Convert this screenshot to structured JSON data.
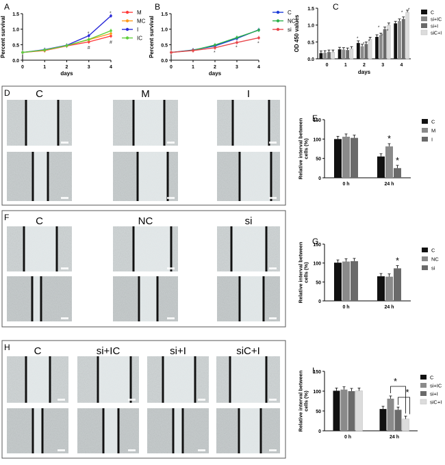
{
  "colors": {
    "M": "#ff3b3b",
    "MC": "#ff9a1a",
    "I": "#2a2ad8",
    "IC": "#5fcf3a",
    "C": "#1b3bd8",
    "NC": "#2bb04a",
    "si": "#e8454a",
    "bar_c": "#111111",
    "bar_2": "#8a8a8a",
    "bar_3": "#6a6a6a",
    "bar_4": "#dcdcdc"
  },
  "chart_data": [
    {
      "panel": "A",
      "type": "line",
      "xlabel": "days",
      "ylabel": "Percent survival",
      "x": [
        0,
        1,
        2,
        3,
        4
      ],
      "ylim": [
        0,
        1.5
      ],
      "yticks": [
        "0.0",
        "0.5",
        "1.0",
        "1.5"
      ],
      "series": [
        {
          "name": "M",
          "values": [
            0.25,
            0.31,
            0.46,
            0.59,
            0.78
          ]
        },
        {
          "name": "MC",
          "values": [
            0.25,
            0.32,
            0.47,
            0.66,
            0.86
          ]
        },
        {
          "name": "I",
          "values": [
            0.25,
            0.34,
            0.48,
            0.79,
            1.43
          ]
        },
        {
          "name": "IC",
          "values": [
            0.25,
            0.33,
            0.47,
            0.67,
            0.95
          ]
        }
      ],
      "annotations": [
        {
          "text": "*",
          "x": 3,
          "y": 0.88
        },
        {
          "text": "*",
          "x": 4,
          "y": 1.53
        },
        {
          "text": "#",
          "x": 3,
          "y": 0.42
        },
        {
          "text": "#",
          "x": 4,
          "y": 0.6
        }
      ]
    },
    {
      "panel": "B",
      "type": "line",
      "xlabel": "days",
      "ylabel": "Percent survival",
      "x": [
        0,
        1,
        2,
        3,
        4
      ],
      "ylim": [
        0,
        1.5
      ],
      "yticks": [
        "0.0",
        "0.5",
        "1.0",
        "1.5"
      ],
      "series": [
        {
          "name": "C",
          "values": [
            0.25,
            0.33,
            0.46,
            0.7,
            0.98
          ]
        },
        {
          "name": "NC",
          "values": [
            0.25,
            0.32,
            0.49,
            0.73,
            0.97
          ]
        },
        {
          "name": "si",
          "values": [
            0.25,
            0.31,
            0.4,
            0.57,
            0.72
          ]
        }
      ],
      "annotations": [
        {
          "text": "*",
          "x": 2,
          "y": 0.27
        },
        {
          "text": "*",
          "x": 3,
          "y": 0.43
        },
        {
          "text": "*",
          "x": 4,
          "y": 0.56
        }
      ]
    },
    {
      "panel": "C",
      "type": "bar",
      "xlabel": "days",
      "ylabel": "OD 450 values",
      "categories": [
        "0",
        "1",
        "2",
        "3",
        "4"
      ],
      "ylim": [
        0,
        1.5
      ],
      "yticks": [
        "0.0",
        "0.5",
        "1.0",
        "1.5"
      ],
      "series": [
        {
          "name": "C",
          "values": [
            0.17,
            0.28,
            0.47,
            0.65,
            1.05
          ]
        },
        {
          "name": "si+IC",
          "values": [
            0.18,
            0.27,
            0.37,
            0.7,
            1.12
          ]
        },
        {
          "name": "si+I",
          "values": [
            0.2,
            0.26,
            0.44,
            0.88,
            1.18
          ]
        },
        {
          "name": "siC+I",
          "values": [
            0.2,
            0.3,
            0.58,
            1.0,
            1.38
          ]
        }
      ]
    },
    {
      "panel": "E",
      "type": "bar",
      "xlabel": "",
      "ylabel": "Relative interval between cells (%)",
      "categories": [
        "0 h",
        "24 h"
      ],
      "ylim": [
        0,
        150
      ],
      "yticks": [
        "0",
        "50",
        "100",
        "150"
      ],
      "series": [
        {
          "name": "C",
          "values": [
            100,
            55
          ]
        },
        {
          "name": "M",
          "values": [
            106,
            81
          ]
        },
        {
          "name": "I",
          "values": [
            103,
            25
          ]
        }
      ],
      "annotations": [
        {
          "text": "*",
          "group": "24 h",
          "series": "M"
        },
        {
          "text": "*",
          "group": "24 h",
          "series": "I"
        }
      ]
    },
    {
      "panel": "G",
      "type": "bar",
      "xlabel": "",
      "ylabel": "Relative interval between cells (%)",
      "categories": [
        "0 h",
        "24 h"
      ],
      "ylim": [
        0,
        150
      ],
      "yticks": [
        "0",
        "50",
        "100",
        "150"
      ],
      "series": [
        {
          "name": "C",
          "values": [
            101,
            65
          ]
        },
        {
          "name": "NC",
          "values": [
            104,
            64
          ]
        },
        {
          "name": "si",
          "values": [
            105,
            86
          ]
        }
      ],
      "annotations": [
        {
          "text": "*",
          "group": "24 h",
          "series": "si"
        }
      ]
    },
    {
      "panel": "I",
      "type": "bar",
      "xlabel": "",
      "ylabel": "Relative interval between cells (%)",
      "categories": [
        "0 h",
        "24 h"
      ],
      "ylim": [
        0,
        150
      ],
      "yticks": [
        "0",
        "50",
        "100",
        "150"
      ],
      "series": [
        {
          "name": "C",
          "values": [
            101,
            55
          ]
        },
        {
          "name": "si+IC",
          "values": [
            104,
            81
          ]
        },
        {
          "name": "si+I",
          "values": [
            100,
            53
          ]
        },
        {
          "name": "siC+I",
          "values": [
            101,
            30
          ]
        }
      ],
      "annotations": [
        {
          "text": "*",
          "between": [
            "si+IC",
            "si+I"
          ]
        },
        {
          "text": "*",
          "between": [
            "si+I",
            "siC+I"
          ]
        }
      ]
    }
  ],
  "photo_panels": [
    {
      "panel": "D",
      "labels": [
        "C",
        "M",
        "I"
      ]
    },
    {
      "panel": "F",
      "labels": [
        "C",
        "NC",
        "si"
      ]
    },
    {
      "panel": "H",
      "labels": [
        "C",
        "si+IC",
        "si+I",
        "siC+I"
      ]
    }
  ]
}
